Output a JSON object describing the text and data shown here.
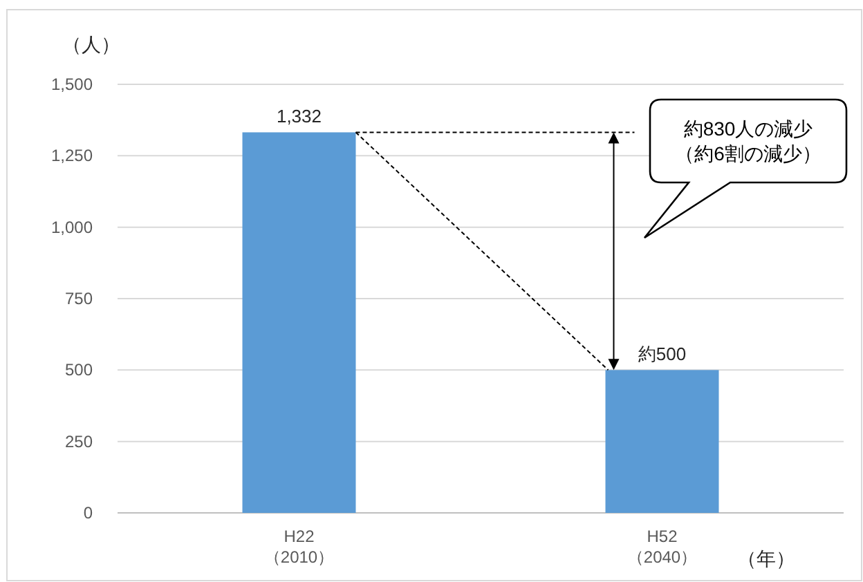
{
  "chart_data": {
    "type": "bar",
    "ylabel": "（人）",
    "xlabel": "（年）",
    "categories": [
      "H22\n（2010）",
      "H52\n（2040）"
    ],
    "values": [
      1332,
      500
    ],
    "value_labels": [
      "1,332",
      "約500"
    ],
    "color": "#5b9bd5",
    "ylim": [
      0,
      1500
    ],
    "yticks": [
      {
        "value": 0,
        "label": "0"
      },
      {
        "value": 250,
        "label": "250"
      },
      {
        "value": 500,
        "label": "500"
      },
      {
        "value": 750,
        "label": "750"
      },
      {
        "value": 1000,
        "label": "1,000"
      },
      {
        "value": 1250,
        "label": "1,250"
      },
      {
        "value": 1500,
        "label": "1,500"
      }
    ],
    "grid": "y",
    "annotations": [
      "約830人の減少",
      "（約6割の減少）"
    ]
  }
}
